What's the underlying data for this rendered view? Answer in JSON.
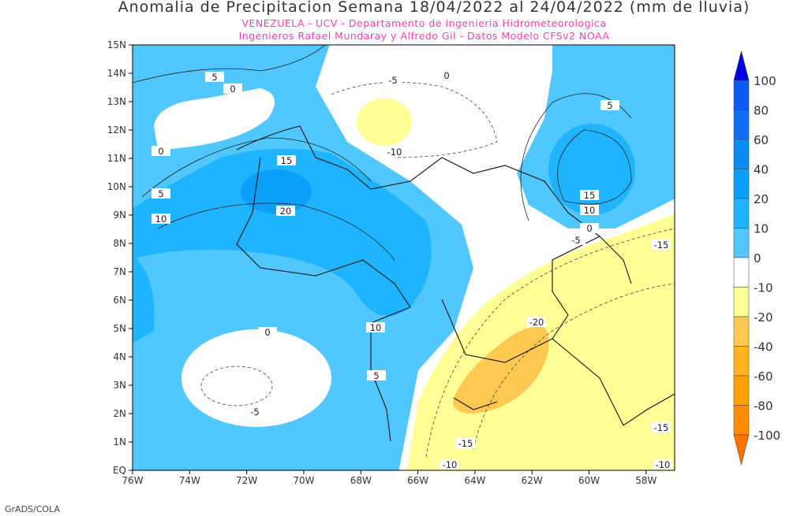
{
  "title": "Anomalia de Precipitacion Semana 18/04/2022 al 24/04/2022 (mm de lluvia)",
  "subtitle_1": "VENEZUELA - UCV - Departamento de Ingenieria Hidrometeorologica",
  "subtitle_2": "Ingenieros Rafael Mundaray y Alfredo Gil - Datos Modelo CFSv2 NOAA",
  "footer": "GrADS/COLA",
  "map": {
    "lon_range": [
      -76,
      -57
    ],
    "lat_range": [
      0,
      15
    ],
    "lat_labels": [
      "EQ",
      "1N",
      "2N",
      "3N",
      "4N",
      "5N",
      "6N",
      "7N",
      "8N",
      "9N",
      "10N",
      "11N",
      "12N",
      "13N",
      "14N",
      "15N"
    ],
    "lon_labels": [
      "76W",
      "74W",
      "72W",
      "70W",
      "68W",
      "66W",
      "64W",
      "62W",
      "60W",
      "58W"
    ],
    "contour_labels": [
      "5",
      "0",
      "0",
      "15",
      "20",
      "5",
      "10",
      "-5",
      "0",
      "-10",
      "5",
      "15",
      "10",
      "0",
      "-5",
      "-15",
      "10",
      "0",
      "5",
      "-20",
      "-5",
      "-15",
      "-15",
      "-10",
      "-10"
    ]
  },
  "colorbar": {
    "labels": [
      "100",
      "80",
      "60",
      "40",
      "20",
      "10",
      "0",
      "-10",
      "-20",
      "-40",
      "-60",
      "-80",
      "-100"
    ],
    "colors": [
      "#0000e6",
      "#0a5af5",
      "#0f6ef5",
      "#0a8cf5",
      "#0aa0fa",
      "#1eb4ff",
      "#50c8ff",
      "#ffffff",
      "#ffff96",
      "#ffc850",
      "#ffb41e",
      "#ffa000",
      "#ff8c00",
      "#ff7300"
    ]
  }
}
